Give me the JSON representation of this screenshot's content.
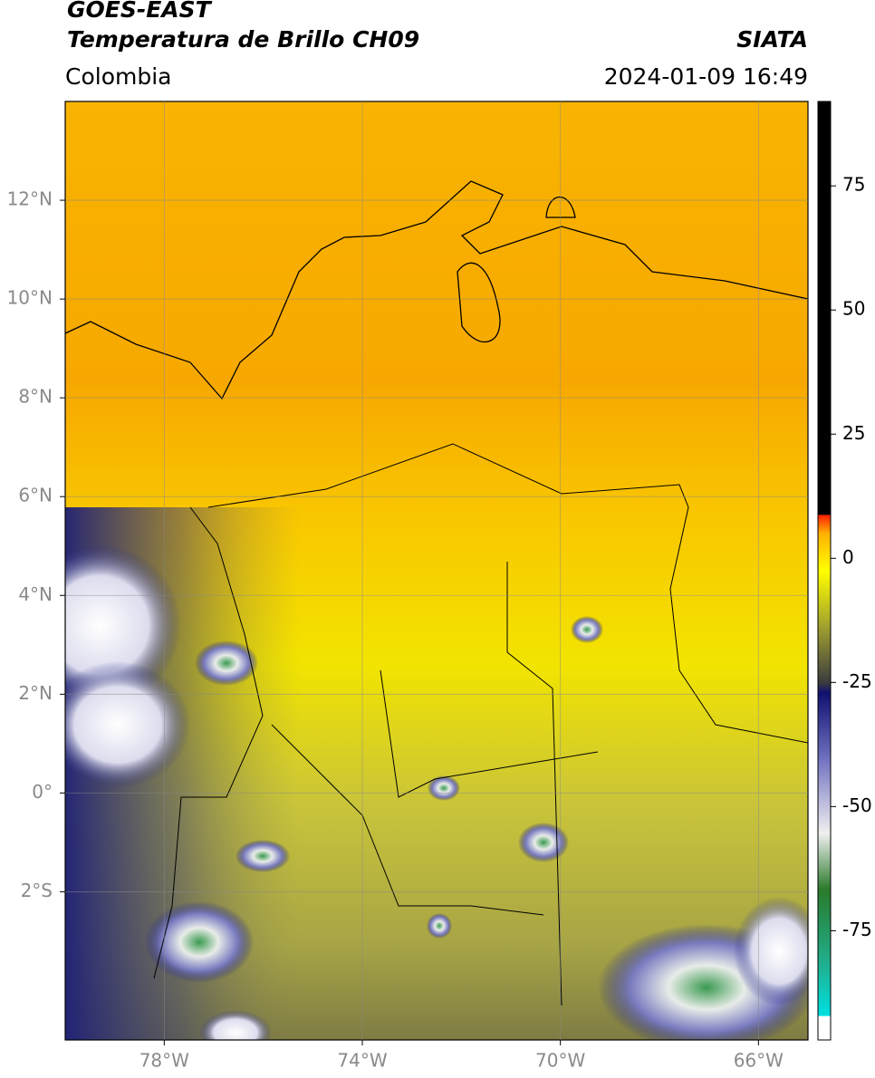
{
  "header": {
    "title": "GOES-EAST",
    "subtitle": "Temperatura de Brillo CH09",
    "source": "SIATA",
    "region": "Colombia",
    "datetime": "2024-01-09 16:49"
  },
  "map": {
    "xlim": [
      -80,
      -65
    ],
    "ylim": [
      -5,
      14
    ],
    "xticks": [
      {
        "value": -78,
        "label": "78°W"
      },
      {
        "value": -74,
        "label": "74°W"
      },
      {
        "value": -70,
        "label": "70°W"
      },
      {
        "value": -66,
        "label": "66°W"
      }
    ],
    "yticks": [
      {
        "value": 12,
        "label": "12°N"
      },
      {
        "value": 10,
        "label": "10°N"
      },
      {
        "value": 8,
        "label": "8°N"
      },
      {
        "value": 6,
        "label": "6°N"
      },
      {
        "value": 4,
        "label": "4°N"
      },
      {
        "value": 2,
        "label": "2°N"
      },
      {
        "value": 0,
        "label": "0°"
      },
      {
        "value": -2,
        "label": "2°S"
      }
    ],
    "grid": true
  },
  "colorbar": {
    "lim": [
      -97,
      92
    ],
    "ticks": [
      75,
      50,
      25,
      0,
      -25,
      -50,
      -75
    ]
  }
}
